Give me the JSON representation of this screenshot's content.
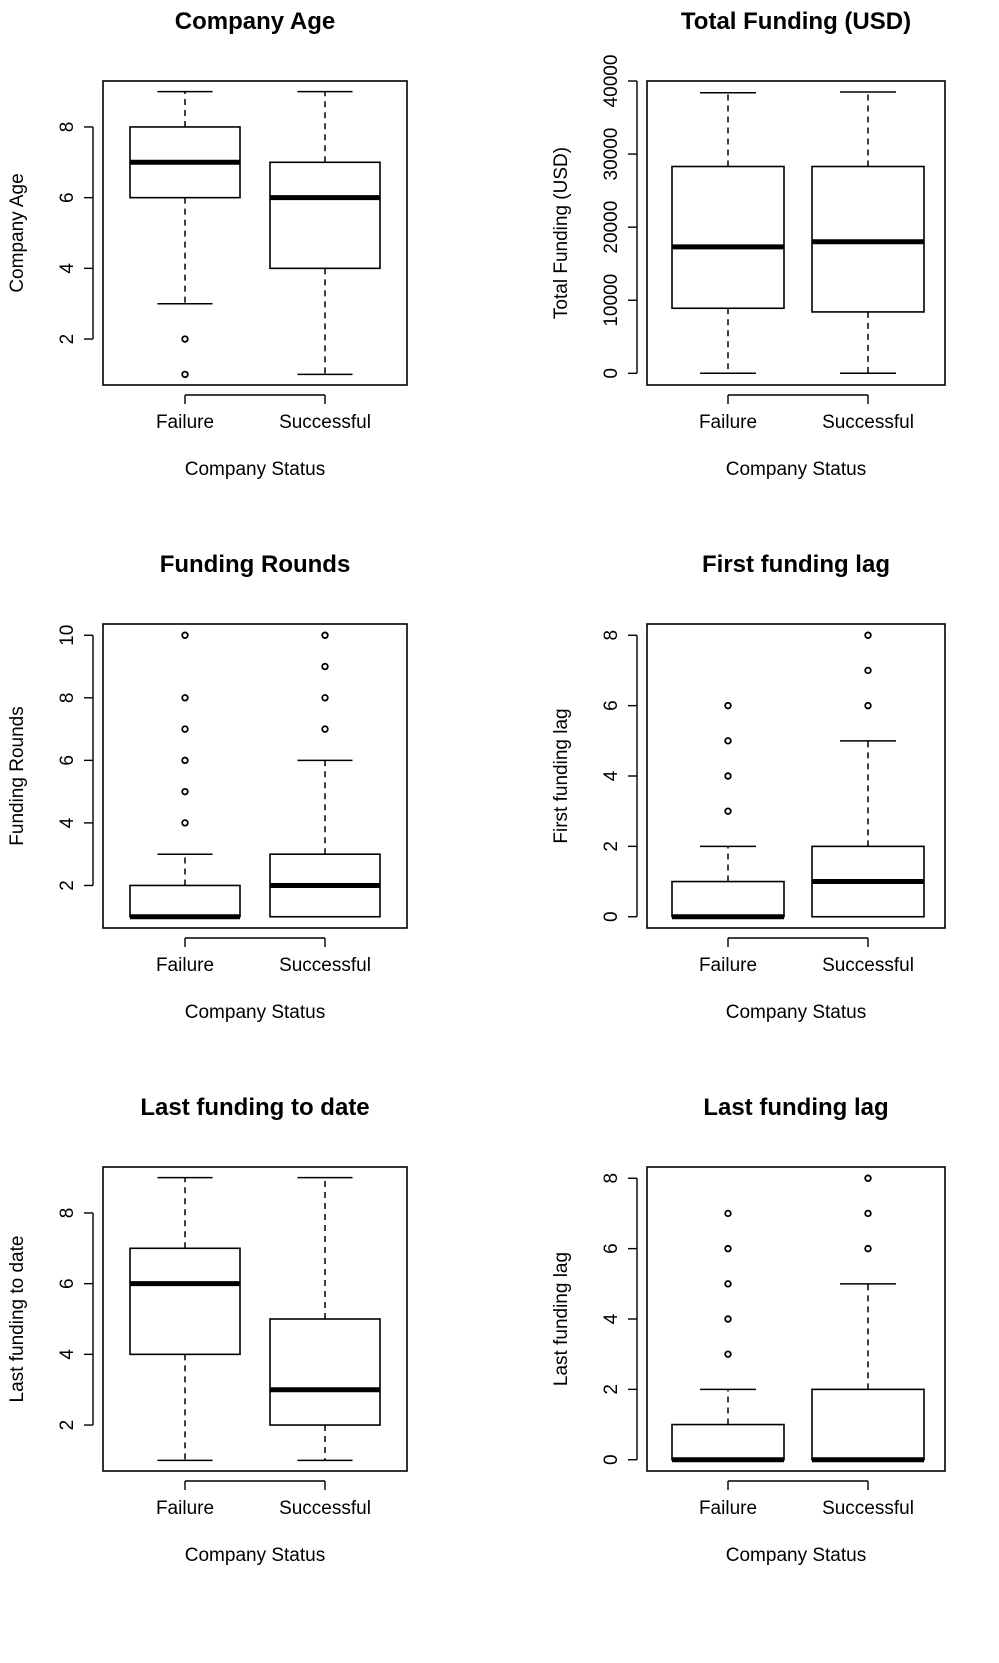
{
  "chart_data": [
    {
      "type": "boxplot",
      "title": "Company Age",
      "xlabel": "Company Status",
      "ylabel": "Company Age",
      "categories": [
        "Failure",
        "Successful"
      ],
      "yticks": [
        2,
        4,
        6,
        8
      ],
      "ylim": [
        0.7,
        9.3
      ],
      "boxes": [
        {
          "name": "Failure",
          "whisker_low": 3,
          "q1": 6,
          "median": 7,
          "q3": 8,
          "whisker_high": 9,
          "outliers": [
            2,
            1
          ]
        },
        {
          "name": "Successful",
          "whisker_low": 1,
          "q1": 4,
          "median": 6,
          "q3": 7,
          "whisker_high": 9,
          "outliers": []
        }
      ]
    },
    {
      "type": "boxplot",
      "title": "Total Funding (USD)",
      "xlabel": "Company Status",
      "ylabel": "Total Funding (USD)",
      "categories": [
        "Failure",
        "Successful"
      ],
      "yticks": [
        0,
        10000,
        20000,
        30000,
        40000
      ],
      "ylim": [
        -1600,
        40000
      ],
      "boxes": [
        {
          "name": "Failure",
          "whisker_low": 0,
          "q1": 8900,
          "median": 17300,
          "q3": 28300,
          "whisker_high": 38400,
          "outliers": []
        },
        {
          "name": "Successful",
          "whisker_low": 0,
          "q1": 8400,
          "median": 18000,
          "q3": 28300,
          "whisker_high": 38500,
          "outliers": []
        }
      ]
    },
    {
      "type": "boxplot",
      "title": "Funding Rounds",
      "xlabel": "Company Status",
      "ylabel": "Funding Rounds",
      "categories": [
        "Failure",
        "Successful"
      ],
      "yticks": [
        2,
        4,
        6,
        8,
        10
      ],
      "ylim": [
        0.64,
        10.36
      ],
      "boxes": [
        {
          "name": "Failure",
          "whisker_low": 1,
          "q1": 1,
          "median": 1,
          "q3": 2,
          "whisker_high": 3,
          "outliers": [
            4,
            5,
            6,
            7,
            8,
            10
          ]
        },
        {
          "name": "Successful",
          "whisker_low": 1,
          "q1": 1,
          "median": 2,
          "q3": 3,
          "whisker_high": 6,
          "outliers": [
            7,
            8,
            9,
            10
          ]
        }
      ]
    },
    {
      "type": "boxplot",
      "title": "First funding lag",
      "xlabel": "Company Status",
      "ylabel": "First funding lag",
      "categories": [
        "Failure",
        "Successful"
      ],
      "yticks": [
        0,
        2,
        4,
        6,
        8
      ],
      "ylim": [
        -0.32,
        8.32
      ],
      "boxes": [
        {
          "name": "Failure",
          "whisker_low": 0,
          "q1": 0,
          "median": 0,
          "q3": 1,
          "whisker_high": 2,
          "outliers": [
            3,
            4,
            5,
            6
          ]
        },
        {
          "name": "Successful",
          "whisker_low": 0,
          "q1": 0,
          "median": 1,
          "q3": 2,
          "whisker_high": 5,
          "outliers": [
            6,
            7,
            8
          ]
        }
      ]
    },
    {
      "type": "boxplot",
      "title": "Last funding to date",
      "xlabel": "Company Status",
      "ylabel": "Last funding to date",
      "categories": [
        "Failure",
        "Successful"
      ],
      "yticks": [
        2,
        4,
        6,
        8
      ],
      "ylim": [
        0.7,
        9.3
      ],
      "boxes": [
        {
          "name": "Failure",
          "whisker_low": 1,
          "q1": 4,
          "median": 6,
          "q3": 7,
          "whisker_high": 9,
          "outliers": []
        },
        {
          "name": "Successful",
          "whisker_low": 1,
          "q1": 2,
          "median": 3,
          "q3": 5,
          "whisker_high": 9,
          "outliers": []
        }
      ]
    },
    {
      "type": "boxplot",
      "title": "Last funding lag",
      "xlabel": "Company Status",
      "ylabel": "Last funding lag",
      "categories": [
        "Failure",
        "Successful"
      ],
      "yticks": [
        0,
        2,
        4,
        6,
        8
      ],
      "ylim": [
        -0.32,
        8.32
      ],
      "boxes": [
        {
          "name": "Failure",
          "whisker_low": 0,
          "q1": 0,
          "median": 0,
          "q3": 1,
          "whisker_high": 2,
          "outliers": [
            3,
            4,
            5,
            6,
            7
          ]
        },
        {
          "name": "Successful",
          "whisker_low": 0,
          "q1": 0,
          "median": 0,
          "q3": 2,
          "whisker_high": 5,
          "outliers": [
            6,
            7,
            8
          ]
        }
      ]
    }
  ]
}
